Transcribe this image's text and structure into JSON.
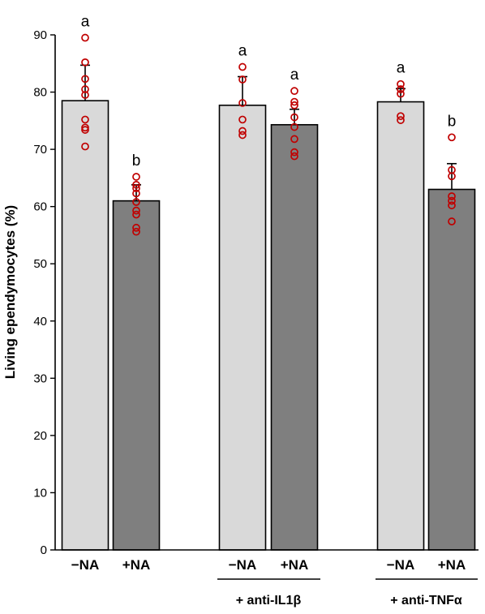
{
  "chart_data": {
    "type": "bar",
    "ylabel": "Living ependymocytes (%)",
    "ylim": [
      0,
      90
    ],
    "yticks": [
      0,
      10,
      20,
      30,
      40,
      50,
      60,
      70,
      80,
      90
    ],
    "grid": false,
    "categories": [
      "−NA",
      "+NA",
      "−NA",
      "+NA",
      "−NA",
      "+NA"
    ],
    "groups": [
      {
        "label": "",
        "bar_indices": [
          0,
          1
        ]
      },
      {
        "label": "+ anti-IL1β",
        "bar_indices": [
          2,
          3
        ]
      },
      {
        "label": "+ anti-TNFα",
        "bar_indices": [
          4,
          5
        ]
      }
    ],
    "values": [
      78.5,
      61.0,
      77.7,
      74.3,
      78.3,
      63.0
    ],
    "errors": [
      6.2,
      2.8,
      5.0,
      2.7,
      2.3,
      4.5
    ],
    "bar_colors": [
      "#d9d9d9",
      "#7f7f7f",
      "#d9d9d9",
      "#7f7f7f",
      "#d9d9d9",
      "#7f7f7f"
    ],
    "significance": [
      "a",
      "b",
      "a",
      "a",
      "a",
      "b"
    ],
    "points": [
      [
        89.5,
        85.2,
        82.3,
        80.5,
        79.5,
        75.2,
        73.8,
        73.4,
        70.5
      ],
      [
        65.2,
        63.8,
        63.2,
        62.3,
        60.8,
        59.3,
        58.6,
        56.3,
        55.6
      ],
      [
        84.4,
        82.2,
        78.1,
        75.2,
        73.2,
        72.5
      ],
      [
        80.2,
        78.3,
        77.7,
        75.6,
        73.9,
        71.8,
        69.5,
        68.8
      ],
      [
        81.4,
        80.5,
        79.7,
        75.8,
        75.1
      ],
      [
        72.1,
        66.4,
        65.3,
        61.8,
        61.0,
        60.2,
        57.4
      ]
    ],
    "point_color": "#c00000"
  }
}
